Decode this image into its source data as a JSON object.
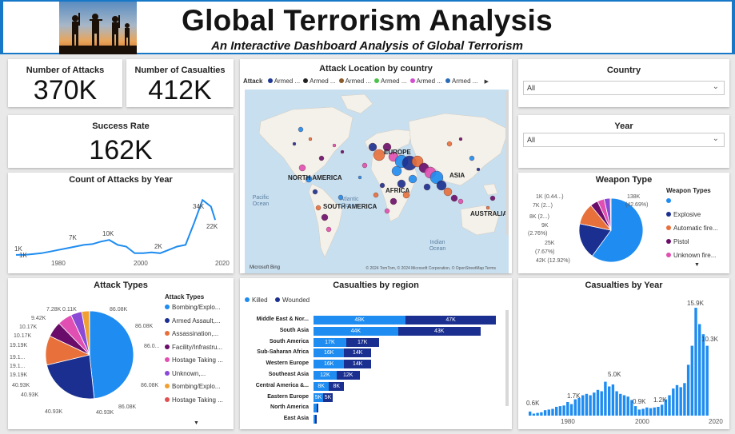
{
  "header": {
    "title": "Global Terrorism Analysis",
    "subtitle": "An Interactive Dashboard Analysis of Global Terrorism"
  },
  "kpis": {
    "attacks": {
      "label": "Number of Attacks",
      "value": "370K"
    },
    "casualties": {
      "label": "Number of Casualties",
      "value": "412K"
    },
    "success": {
      "label": "Success Rate",
      "value": "162K"
    }
  },
  "map": {
    "title": "Attack Location by country",
    "legend_title": "Attack",
    "legend_items": [
      {
        "label": "Armed ...",
        "color": "#1f3a93"
      },
      {
        "label": "Armed ...",
        "color": "#222222"
      },
      {
        "label": "Armed ...",
        "color": "#8b5a2b"
      },
      {
        "label": "Armed ...",
        "color": "#4cc24c"
      },
      {
        "label": "Armed ...",
        "color": "#d24ed2"
      },
      {
        "label": "Armed ...",
        "color": "#2a6db5"
      }
    ],
    "continents": [
      "NORTH AMERICA",
      "EUROPE",
      "ASIA",
      "AFRICA",
      "SOUTH AMERICA",
      "AUSTRALIA"
    ],
    "oceans": [
      "Pacific Ocean",
      "Atlantic Ocean",
      "Indian Ocean"
    ],
    "bing": "Microsoft Bing",
    "credit": "© 2024 TomTom, © 2024 Microsoft Corporation, © OpenStreetMap Terms"
  },
  "slicers": {
    "country": {
      "title": "Country",
      "value": "All"
    },
    "year": {
      "title": "Year",
      "value": "All"
    }
  },
  "attacks_by_year": {
    "title": "Count of Attacks by Year",
    "labels": [
      "1K",
      "1K",
      "7K",
      "10K",
      "2K",
      "34K",
      "22K"
    ],
    "x_ticks": [
      "1980",
      "2000",
      "2020"
    ]
  },
  "weapon": {
    "title": "Weapon Type",
    "legend_title": "Weapon Types",
    "legend": [
      {
        "label": "",
        "color": "#1e8cf0"
      },
      {
        "label": "Explosive",
        "color": "#1a2f8f"
      },
      {
        "label": "Automatic fire...",
        "color": "#e8703a"
      },
      {
        "label": "Pistol",
        "color": "#6a0d6a"
      },
      {
        "label": "Unknown fire...",
        "color": "#e24fb2"
      }
    ],
    "labels": [
      "1K (0.44...)",
      "7K (2...)",
      "8K (2...)",
      "9K",
      "(2.76%)",
      "25K",
      "(7.67%)",
      "42K (12.92%)",
      "138K",
      "(42.69%)"
    ]
  },
  "attack_types": {
    "title": "Attack Types",
    "legend_title": "Attack Types",
    "legend": [
      {
        "label": "Bombing/Explo...",
        "color": "#1e8cf0"
      },
      {
        "label": "Armed Assault,...",
        "color": "#1a2f8f"
      },
      {
        "label": "Assassination,...",
        "color": "#e8703a"
      },
      {
        "label": "Facility/Infrastru...",
        "color": "#6a0d6a"
      },
      {
        "label": "Hostage Taking ...",
        "color": "#e24fb2"
      },
      {
        "label": "Unknown,...",
        "color": "#8a4ad6"
      },
      {
        "label": "Bombing/Explo...",
        "color": "#f0a030"
      },
      {
        "label": "Hostage Taking ...",
        "color": "#e05050"
      }
    ],
    "labels_left": [
      "7.28K",
      "0.11K",
      "9.42K",
      "10.17K",
      "10.17K",
      "19.19K",
      "19.1...",
      "19.1...",
      "19.19K",
      "40.93K",
      "40.93K",
      "40.93K",
      "40.93K"
    ],
    "labels_right": [
      "86.08K",
      "86.08K",
      "86.0...",
      "86.08K",
      "86.08K"
    ]
  },
  "casualties_region": {
    "title": "Casualties by region",
    "legend": [
      {
        "label": "Killed",
        "color": "#1e8cf0"
      },
      {
        "label": "Wounded",
        "color": "#1a2f8f"
      }
    ],
    "rows": [
      {
        "region": "Middle East & Nor...",
        "killed": 48,
        "wounded": 47,
        "killed_label": "48K",
        "wounded_label": "47K"
      },
      {
        "region": "South Asia",
        "killed": 44,
        "wounded": 43,
        "killed_label": "44K",
        "wounded_label": "43K"
      },
      {
        "region": "South America",
        "killed": 17,
        "wounded": 17,
        "killed_label": "17K",
        "wounded_label": "17K"
      },
      {
        "region": "Sub-Saharan Africa",
        "killed": 16,
        "wounded": 14,
        "killed_label": "16K",
        "wounded_label": "14K"
      },
      {
        "region": "Western Europe",
        "killed": 16,
        "wounded": 14,
        "killed_label": "16K",
        "wounded_label": "14K"
      },
      {
        "region": "Southeast Asia",
        "killed": 12,
        "wounded": 12,
        "killed_label": "12K",
        "wounded_label": "12K"
      },
      {
        "region": "Central America &...",
        "killed": 8,
        "wounded": 8,
        "killed_label": "8K",
        "wounded_label": "8K"
      },
      {
        "region": "Eastern Europe",
        "killed": 5,
        "wounded": 5,
        "killed_label": "5K",
        "wounded_label": "5K"
      },
      {
        "region": "North America",
        "killed": 1.5,
        "wounded": 1.2,
        "killed_label": "",
        "wounded_label": ""
      },
      {
        "region": "East Asia",
        "killed": 1,
        "wounded": 0.8,
        "killed_label": "",
        "wounded_label": ""
      }
    ]
  },
  "casualties_year": {
    "title": "Casualties by Year",
    "labels": [
      "15.9K",
      "10.3K",
      "5.0K",
      "1.7K",
      "0.9K",
      "1.2K",
      "0.6K"
    ],
    "x_ticks": [
      "1980",
      "2000",
      "2020"
    ]
  },
  "chart_data": [
    {
      "type": "line",
      "title": "Count of Attacks by Year",
      "x": [
        1970,
        1972,
        1974,
        1976,
        1978,
        1980,
        1982,
        1984,
        1986,
        1988,
        1990,
        1992,
        1994,
        1996,
        1998,
        2000,
        2002,
        2004,
        2006,
        2008,
        2010,
        2012,
        2014,
        2016,
        2017
      ],
      "y": [
        1,
        1,
        1.5,
        2,
        3,
        4,
        5,
        6,
        7,
        7.5,
        9,
        10,
        7,
        6,
        2,
        2,
        2.5,
        2,
        4,
        6,
        7,
        20,
        34,
        30,
        22
      ],
      "x_ticks": [
        "1980",
        "2000",
        "2020"
      ]
    },
    {
      "type": "pie",
      "title": "Weapon Type",
      "slices": [
        {
          "label": "",
          "value": 138,
          "percent": 42.69,
          "color": "#1e8cf0"
        },
        {
          "label": "Explosive",
          "value": 42,
          "percent": 12.92,
          "color": "#1a2f8f"
        },
        {
          "label": "Automatic fire...",
          "value": 25,
          "percent": 7.67,
          "color": "#e8703a"
        },
        {
          "label": "Pistol",
          "value": 9,
          "percent": 2.76,
          "color": "#6a0d6a"
        },
        {
          "label": "Unknown fire...",
          "value": 8,
          "color": "#e24fb2"
        },
        {
          "label": "",
          "value": 7,
          "color": "#8a4ad6"
        },
        {
          "label": "",
          "value": 1,
          "percent": 0.44,
          "color": "#f0a030"
        }
      ]
    },
    {
      "type": "pie",
      "title": "Attack Types",
      "slices": [
        {
          "label": "Bombing/Explo...",
          "value": 86.08,
          "color": "#1e8cf0"
        },
        {
          "label": "Armed Assault,...",
          "value": 40.93,
          "color": "#1a2f8f"
        },
        {
          "label": "Assassination,...",
          "value": 19.19,
          "color": "#e8703a"
        },
        {
          "label": "Facility/Infrastru...",
          "value": 10.17,
          "color": "#6a0d6a"
        },
        {
          "label": "Hostage Taking ...",
          "value": 9.42,
          "color": "#e24fb2"
        },
        {
          "label": "Unknown,...",
          "value": 7.28,
          "color": "#8a4ad6"
        },
        {
          "label": "Bombing/Explo...",
          "value": 5,
          "color": "#f0a030"
        },
        {
          "label": "Hostage Taking ...",
          "value": 0.11,
          "color": "#e05050"
        }
      ]
    },
    {
      "type": "bar",
      "title": "Casualties by region",
      "categories": [
        "Middle East & Nor...",
        "South Asia",
        "South America",
        "Sub-Saharan Africa",
        "Western Europe",
        "Southeast Asia",
        "Central America &...",
        "Eastern Europe",
        "North America",
        "East Asia"
      ],
      "series": [
        {
          "name": "Killed",
          "values": [
            48,
            44,
            17,
            16,
            16,
            12,
            8,
            5,
            1.5,
            1
          ]
        },
        {
          "name": "Wounded",
          "values": [
            47,
            43,
            17,
            14,
            14,
            12,
            8,
            5,
            1.2,
            0.8
          ]
        }
      ]
    },
    {
      "type": "bar",
      "title": "Casualties by Year",
      "x": [
        1970,
        1971,
        1972,
        1973,
        1974,
        1975,
        1976,
        1977,
        1978,
        1979,
        1980,
        1981,
        1982,
        1983,
        1984,
        1985,
        1986,
        1987,
        1988,
        1989,
        1990,
        1991,
        1992,
        1993,
        1994,
        1995,
        1996,
        1997,
        1998,
        1999,
        2000,
        2001,
        2002,
        2003,
        2004,
        2005,
        2006,
        2007,
        2008,
        2009,
        2010,
        2011,
        2012,
        2013,
        2014,
        2015,
        2016,
        2017
      ],
      "values": [
        0.6,
        0.3,
        0.4,
        0.5,
        0.8,
        0.9,
        1.0,
        1.3,
        1.4,
        1.5,
        2.0,
        1.7,
        2.4,
        2.6,
        3.0,
        3.2,
        3.0,
        3.4,
        3.8,
        3.6,
        5.0,
        4.3,
        4.6,
        3.6,
        3.2,
        3.0,
        2.8,
        2.3,
        1.4,
        0.9,
        1.0,
        1.2,
        1.1,
        1.2,
        1.3,
        1.6,
        2.4,
        3.0,
        4.0,
        4.5,
        4.2,
        4.8,
        7.5,
        10.3,
        15.9,
        13.5,
        12.0,
        10.3
      ],
      "x_ticks": [
        "1980",
        "2000",
        "2020"
      ]
    }
  ]
}
